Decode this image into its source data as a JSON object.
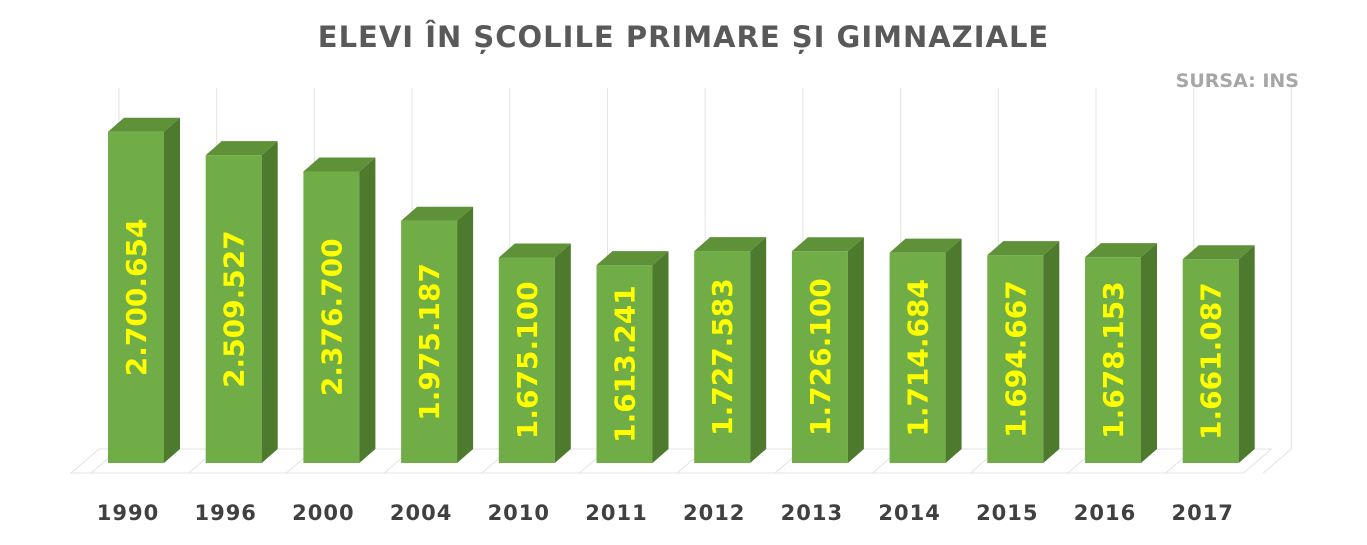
{
  "chart_data": {
    "type": "bar",
    "title": "ELEVI ÎN ȘCOLILE PRIMARE ȘI GIMNAZIALE",
    "source_note": "SURSA: INS",
    "categories": [
      "1990",
      "1996",
      "2000",
      "2004",
      "2010",
      "2011",
      "2012",
      "2013",
      "2014",
      "2015",
      "2016",
      "2017"
    ],
    "values": [
      2700654,
      2509527,
      2376700,
      1975187,
      1675100,
      1613241,
      1727583,
      1726100,
      1714684,
      1694667,
      1678153,
      1661087
    ],
    "value_labels": [
      "2.700.654",
      "2.509.527",
      "2.376.700",
      "1.975.187",
      "1.675.100",
      "1.613.241",
      "1.727.583",
      "1.726.100",
      "1.714.684",
      "1.694.667",
      "1.678.153",
      "1.661.087"
    ],
    "ylim": [
      0,
      3000000
    ],
    "grid": true,
    "colors": {
      "bar_front": "#70ad47",
      "bar_side": "#4e7a2e",
      "bar_top": "#5f9138",
      "label": "#ffff00",
      "grid": "#e3e3e3"
    }
  }
}
